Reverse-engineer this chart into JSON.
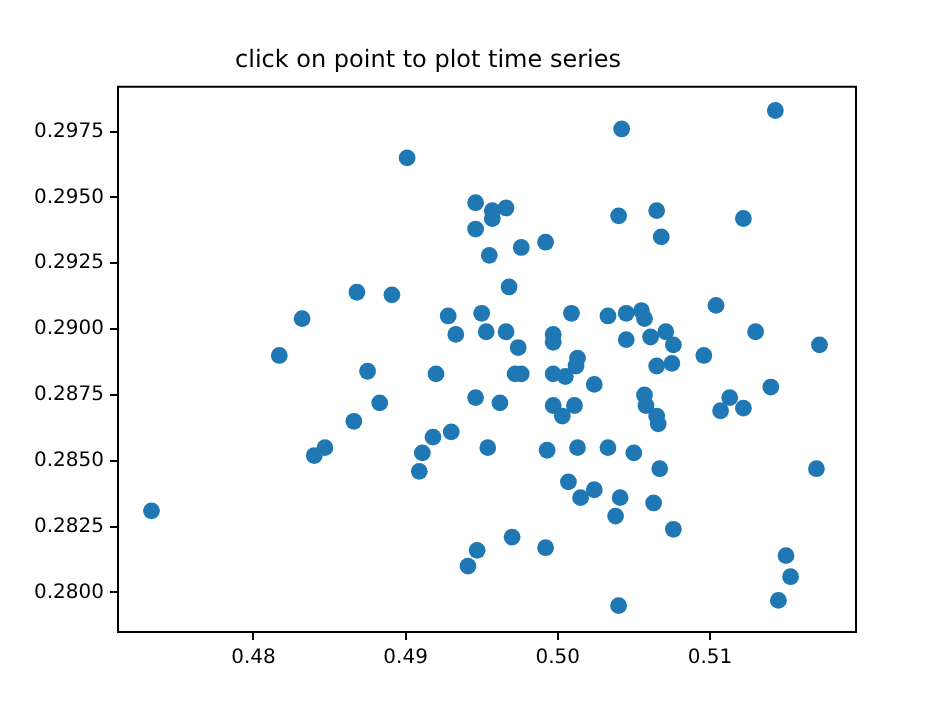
{
  "chart_data": {
    "type": "scatter",
    "title": "click on point to plot time series",
    "color": "#1f77b4",
    "marker": "circle",
    "grid": false,
    "legend": false,
    "x": [
      0.4901,
      0.4946,
      0.4946,
      0.4957,
      0.4957,
      0.4966,
      0.4955,
      0.4976,
      0.4992,
      0.5042,
      0.5143,
      0.504,
      0.5065,
      0.5068,
      0.5122,
      0.4968,
      0.495,
      0.4953,
      0.4966,
      0.4974,
      0.5009,
      0.5033,
      0.5045,
      0.5055,
      0.5057,
      0.5045,
      0.5061,
      0.5071,
      0.5076,
      0.5104,
      0.513,
      0.5172,
      0.4997,
      0.4997,
      0.5013,
      0.5012,
      0.5065,
      0.5075,
      0.5096,
      0.4868,
      0.4891,
      0.4832,
      0.4928,
      0.4933,
      0.4817,
      0.4875,
      0.492,
      0.4946,
      0.4883,
      0.4866,
      0.4918,
      0.493,
      0.4847,
      0.484,
      0.4911,
      0.4909,
      0.4954,
      0.4733,
      0.4947,
      0.4941,
      0.4962,
      0.4972,
      0.4976,
      0.4997,
      0.5005,
      0.5024,
      0.4997,
      0.5003,
      0.5011,
      0.5057,
      0.5058,
      0.5065,
      0.5066,
      0.5107,
      0.5113,
      0.5122,
      0.514,
      0.4993,
      0.5013,
      0.5033,
      0.505,
      0.5067,
      0.517,
      0.5007,
      0.5015,
      0.5024,
      0.5041,
      0.5038,
      0.5063,
      0.5076,
      0.497,
      0.4992,
      0.504,
      0.515,
      0.5153,
      0.5145
    ],
    "values": [
      0.2965,
      0.2948,
      0.2938,
      0.2945,
      0.2942,
      0.2946,
      0.2928,
      0.2931,
      0.2933,
      0.2976,
      0.2983,
      0.2943,
      0.2945,
      0.2935,
      0.2942,
      0.2916,
      0.2906,
      0.2899,
      0.2899,
      0.2893,
      0.2906,
      0.2905,
      0.2906,
      0.2907,
      0.2904,
      0.2896,
      0.2897,
      0.2899,
      0.2894,
      0.2909,
      0.2899,
      0.2894,
      0.2898,
      0.2895,
      0.2889,
      0.2886,
      0.2886,
      0.2887,
      0.289,
      0.2914,
      0.2913,
      0.2904,
      0.2905,
      0.2898,
      0.289,
      0.2884,
      0.2883,
      0.2874,
      0.2872,
      0.2865,
      0.2859,
      0.2861,
      0.2855,
      0.2852,
      0.2853,
      0.2846,
      0.2855,
      0.2831,
      0.2816,
      0.281,
      0.2872,
      0.2883,
      0.2883,
      0.2883,
      0.2882,
      0.2879,
      0.2871,
      0.2867,
      0.2871,
      0.2875,
      0.2871,
      0.2867,
      0.2864,
      0.2869,
      0.2874,
      0.287,
      0.2878,
      0.2854,
      0.2855,
      0.2855,
      0.2853,
      0.2847,
      0.2847,
      0.2842,
      0.2836,
      0.2839,
      0.2836,
      0.2829,
      0.2834,
      0.2824,
      0.2821,
      0.2817,
      0.2795,
      0.2814,
      0.2806,
      0.2797
    ],
    "xlim": [
      0.4711,
      0.5196
    ],
    "ylim": [
      0.2785,
      0.2992
    ],
    "xticks": [
      0.48,
      0.49,
      {
        "value": 0.5,
        "label": "0.50"
      },
      0.51
    ],
    "yticks": [
      {
        "value": 0.28,
        "label": "0.2800"
      },
      0.2825,
      {
        "value": 0.285,
        "label": "0.2850"
      },
      0.2875,
      {
        "value": 0.29,
        "label": "0.2900"
      },
      0.2925,
      {
        "value": 0.295,
        "label": "0.2950"
      },
      0.2975
    ]
  }
}
